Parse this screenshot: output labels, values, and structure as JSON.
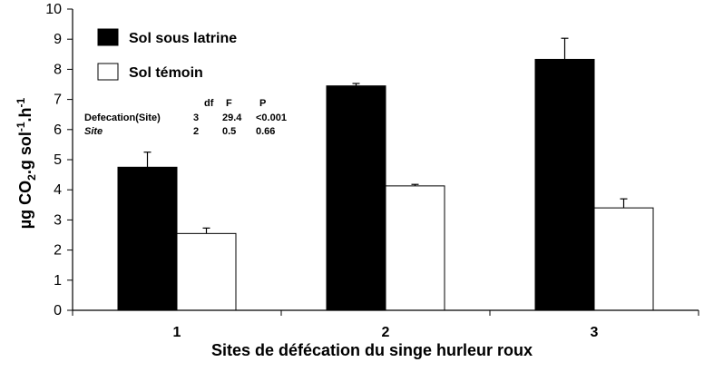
{
  "chart_data": {
    "type": "bar",
    "categories": [
      "1",
      "2",
      "3"
    ],
    "series": [
      {
        "name": "Sol sous latrine",
        "values": [
          4.75,
          7.45,
          8.33
        ],
        "errors": [
          0.5,
          0.08,
          0.7
        ],
        "color": "#000000"
      },
      {
        "name": "Sol témoin",
        "values": [
          2.55,
          4.13,
          3.4
        ],
        "errors": [
          0.18,
          0.05,
          0.3
        ],
        "color": "#ffffff"
      }
    ],
    "xlabel": "Sites de défécation du singe hurleur roux",
    "ylabel": {
      "main": "µg CO",
      "sub": "2",
      "mid": ".g sol",
      "sup1": "-1",
      "mid2": ".h",
      "sup2": "-1"
    },
    "ylim": [
      0,
      10
    ],
    "yticks": [
      "0",
      "1",
      "2",
      "3",
      "4",
      "5",
      "6",
      "7",
      "8",
      "9",
      "10"
    ],
    "legend_position": "top-left",
    "stats_table": {
      "headers": [
        "df",
        "F",
        "P"
      ],
      "rows": [
        {
          "label": "Defecation(Site)",
          "italic": false,
          "df": "3",
          "F": "29.4",
          "P": "<0.001"
        },
        {
          "label": "Site",
          "italic": true,
          "df": "2",
          "F": "0.5",
          "P": "0.66"
        }
      ]
    }
  }
}
